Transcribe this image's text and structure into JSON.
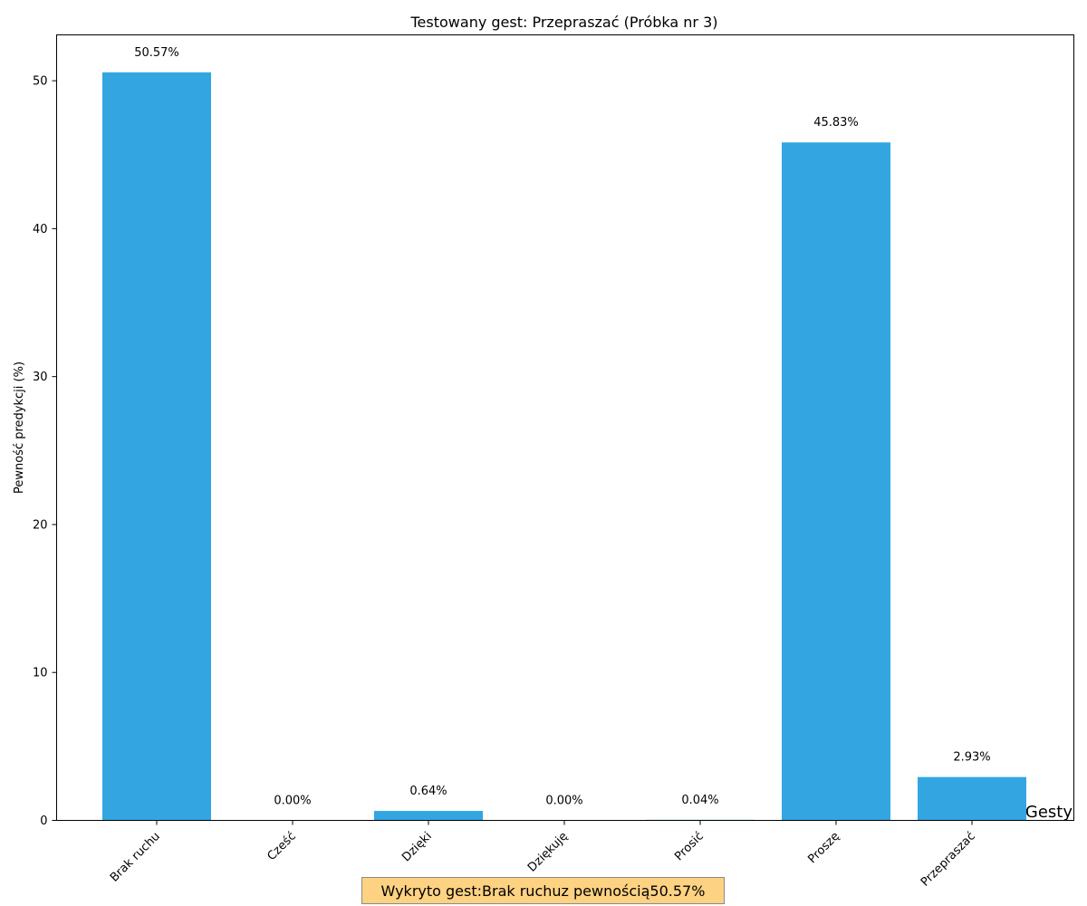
{
  "chart_data": {
    "type": "bar",
    "title": "Testowany gest: Przepraszać (Próbka nr 3)",
    "xlabel": "Gesty",
    "ylabel": "Pewność predykcji (%)",
    "categories": [
      "Brak ruchu",
      "Cześć",
      "Dzięki",
      "Dziękuję",
      "Prosić",
      "Proszę",
      "Przepraszać"
    ],
    "values": [
      50.57,
      0.0,
      0.64,
      0.0,
      0.04,
      45.83,
      2.93
    ],
    "value_labels": [
      "50.57%",
      "0.00%",
      "0.64%",
      "0.00%",
      "0.04%",
      "45.83%",
      "2.93%"
    ],
    "ylim": [
      0,
      53.1
    ],
    "yticks": [
      0,
      10,
      20,
      30,
      40,
      50
    ],
    "bar_color": "#33a6e2",
    "grid": false,
    "legend": "none"
  },
  "result": {
    "text_prefix": "Wykryto gest: ",
    "gesture": "Brak ruchu",
    "text_middle": " z pewnością ",
    "confidence": "50.57%",
    "box_color": "#fdd282"
  }
}
